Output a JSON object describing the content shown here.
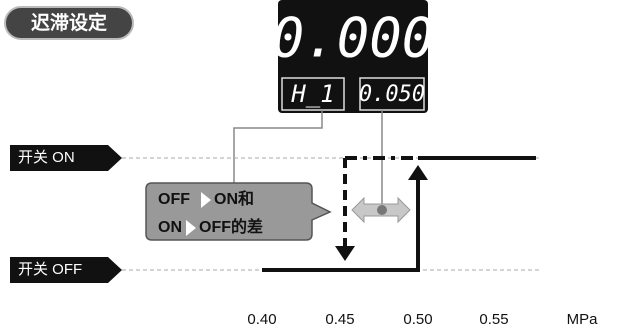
{
  "title": "迟滞设定",
  "display": {
    "main": "0.000",
    "left": "H_1",
    "right": "0.050"
  },
  "switch_on": "开关 ON",
  "switch_off": "开关 OFF",
  "callout": {
    "line1_a": "OFF",
    "line1_b": "ON和",
    "line2_a": "ON",
    "line2_b": "OFF的差"
  },
  "axis": {
    "ticks": [
      "0.40",
      "0.45",
      "0.50",
      "0.55"
    ],
    "unit": "MPa"
  }
}
